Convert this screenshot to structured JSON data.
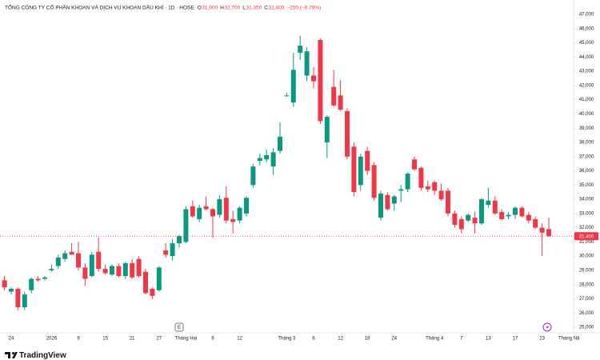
{
  "chart_data": {
    "type": "candlestick",
    "title": "TỔNG CÔNG TY CỔ PHẦN KHOAN VÀ DỊCH VỤ KHOAN DẦU KHÍ · 1D · HOSE",
    "legend_letters": [
      "O",
      "H",
      "L",
      "C"
    ],
    "legend_values": [
      "31,900",
      "32,700",
      "31,350",
      "31,400"
    ],
    "legend_change": "−250 (−0.79%)",
    "brand": "TradingView",
    "earnings_marker": "E",
    "up_color": "#089981",
    "down_color": "#f23645",
    "grid": false,
    "categories": [
      null,
      "24",
      null,
      null,
      null,
      null,
      null,
      "2026",
      null,
      null,
      null,
      "9",
      null,
      null,
      null,
      "15",
      null,
      null,
      null,
      "21",
      null,
      null,
      null,
      "27",
      null,
      null,
      null,
      "Tháng Hai",
      null,
      null,
      null,
      "6",
      null,
      null,
      null,
      "12",
      null,
      null,
      null,
      null,
      null,
      null,
      "Tháng 3",
      null,
      null,
      null,
      "6",
      null,
      null,
      null,
      "12",
      null,
      null,
      null,
      "18",
      null,
      null,
      null,
      "24",
      null,
      null,
      null,
      null,
      null,
      "Tháng 4",
      null,
      null,
      null,
      "7",
      null,
      null,
      null,
      "13",
      null,
      null,
      null,
      "17",
      null,
      null,
      null,
      "23",
      null,
      null,
      null,
      "Tháng Nă"
    ],
    "open": [
      28300,
      27500,
      27700,
      26400,
      27600,
      28400,
      28400,
      29000,
      29300,
      29800,
      30300,
      30200,
      29200,
      28600,
      30300,
      29100,
      28700,
      29300,
      28600,
      29500,
      29800,
      28900,
      27700,
      27600,
      30400,
      30000,
      30900,
      31000,
      33500,
      32600,
      33500,
      33300,
      32900,
      34100,
      32600,
      32500,
      33000,
      35000,
      36700,
      36800,
      36300,
      37400,
      41300,
      40800,
      44300,
      42700,
      42700,
      45200,
      38000,
      41900,
      41300,
      40200,
      37700,
      35000,
      37400,
      36400,
      32700,
      34300,
      33700,
      34600,
      34700,
      36800,
      36200,
      34900,
      35200,
      34600,
      34600,
      33000,
      32600,
      32500,
      32700,
      32300,
      33600,
      33900,
      33100,
      32800,
      32900,
      33400,
      32900,
      32600,
      32000,
      31900,
      null,
      null,
      null
    ],
    "high": [
      28600,
      27800,
      27800,
      27500,
      28500,
      28600,
      28600,
      29400,
      30100,
      30400,
      30900,
      31000,
      29500,
      30300,
      31300,
      29400,
      29400,
      29500,
      29600,
      29800,
      30000,
      29100,
      27800,
      29300,
      30900,
      31200,
      31500,
      33500,
      33900,
      33600,
      34200,
      33400,
      34300,
      34900,
      33200,
      33500,
      34200,
      36500,
      37200,
      37500,
      37600,
      39400,
      41500,
      44300,
      45500,
      44700,
      43300,
      45300,
      39900,
      43100,
      42400,
      40400,
      38000,
      37200,
      37700,
      36600,
      34600,
      34500,
      34300,
      35000,
      35900,
      37000,
      36300,
      35300,
      35300,
      35100,
      34800,
      33200,
      32800,
      33000,
      33100,
      34100,
      34800,
      34200,
      33300,
      33100,
      33500,
      33500,
      33100,
      32800,
      32300,
      32700,
      null,
      null,
      null
    ],
    "low": [
      27600,
      27300,
      26200,
      26200,
      27400,
      28200,
      28300,
      28900,
      29100,
      29600,
      30100,
      29000,
      27900,
      28500,
      28900,
      28700,
      28600,
      28500,
      28400,
      28400,
      28500,
      27300,
      27000,
      27500,
      29900,
      29700,
      30600,
      30900,
      32700,
      32400,
      33200,
      31300,
      32700,
      32300,
      31600,
      32300,
      32800,
      34800,
      36400,
      36600,
      35700,
      37200,
      41200,
      40500,
      43800,
      42300,
      41800,
      39300,
      36900,
      40500,
      40200,
      36800,
      34200,
      34600,
      35700,
      33900,
      32500,
      33200,
      33200,
      33800,
      34500,
      36000,
      34600,
      34500,
      34300,
      33900,
      32800,
      32000,
      31600,
      32400,
      31600,
      32200,
      33400,
      32900,
      32500,
      32600,
      32600,
      32700,
      32300,
      31900,
      30000,
      31350,
      null,
      null,
      null
    ],
    "close": [
      27800,
      27700,
      26400,
      27300,
      28400,
      28300,
      28500,
      29100,
      29900,
      30200,
      30100,
      29200,
      28400,
      30100,
      29100,
      28800,
      29300,
      28600,
      29500,
      28500,
      28600,
      27400,
      27200,
      29200,
      30100,
      30900,
      31400,
      33300,
      32800,
      33400,
      33300,
      32800,
      34000,
      32500,
      32400,
      33400,
      34100,
      36300,
      36900,
      37100,
      37300,
      38400,
      41300,
      43100,
      44800,
      44400,
      42300,
      39500,
      39800,
      40600,
      40300,
      37000,
      34500,
      37000,
      36000,
      34100,
      34400,
      33300,
      34200,
      34700,
      35800,
      36100,
      34800,
      34700,
      34600,
      34000,
      33000,
      32200,
      31900,
      32900,
      32300,
      34000,
      33900,
      33000,
      32600,
      32900,
      33400,
      32800,
      32500,
      32000,
      31650,
      31400,
      null,
      null,
      null
    ],
    "last_price": {
      "value": 31400,
      "label": "31,400"
    },
    "ylim": [
      25000,
      47000
    ],
    "yticks": [
      {
        "value": 25000,
        "label": "25,000"
      },
      {
        "value": 26000,
        "label": "26,000"
      },
      {
        "value": 27000,
        "label": "27,000"
      },
      {
        "value": 28000,
        "label": "28,000"
      },
      {
        "value": 29000,
        "label": "29,000"
      },
      {
        "value": 30000,
        "label": "30,000"
      },
      {
        "value": 31000,
        "label": "31,000"
      },
      {
        "value": 32000,
        "label": "32,000"
      },
      {
        "value": 33000,
        "label": "33,000"
      },
      {
        "value": 34000,
        "label": "34,000"
      },
      {
        "value": 35000,
        "label": "35,000"
      },
      {
        "value": 36000,
        "label": "36,000"
      },
      {
        "value": 37000,
        "label": "37,000"
      },
      {
        "value": 38000,
        "label": "38,000"
      },
      {
        "value": 39000,
        "label": "39,000"
      },
      {
        "value": 40000,
        "label": "40,000"
      },
      {
        "value": 41000,
        "label": "41,000"
      },
      {
        "value": 42000,
        "label": "42,000"
      },
      {
        "value": 43000,
        "label": "43,000"
      },
      {
        "value": 44000,
        "label": "44,000"
      },
      {
        "value": 45000,
        "label": "45,000"
      },
      {
        "value": 46000,
        "label": "46,000"
      },
      {
        "value": 47000,
        "label": "47,000"
      }
    ]
  }
}
